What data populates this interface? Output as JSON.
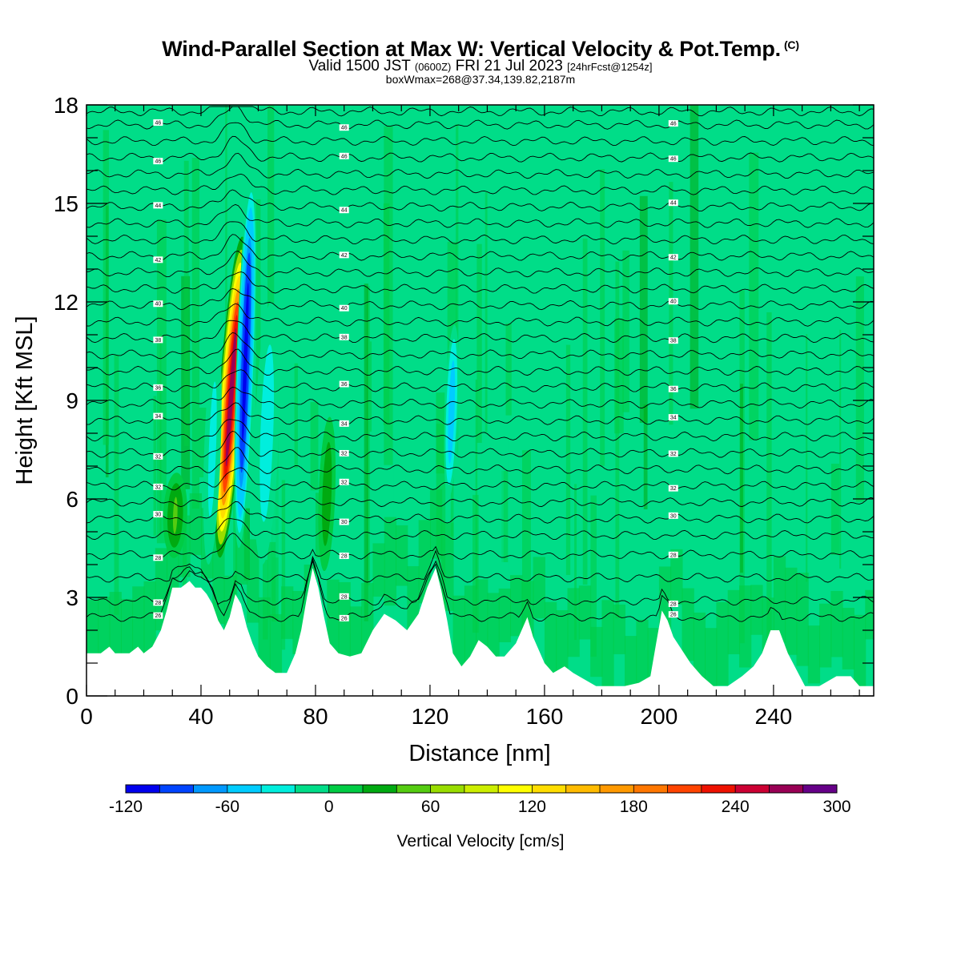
{
  "title": {
    "main": "Wind-Parallel Section at Max W: Vertical Velocity & Pot.Temp.",
    "main_suffix": "(C)",
    "valid_prefix": "Valid 1500 JST",
    "valid_z": "(0600Z)",
    "valid_date": "FRI 21 Jul 2023",
    "valid_fcst": "[24hrFcst@1254z]",
    "boxline": "boxWmax=268@37.34,139.82,2187m"
  },
  "chart_data": {
    "type": "heatmap",
    "xlabel": "Distance [nm]",
    "ylabel": "Height [Kft MSL]",
    "xlim": [
      0,
      275
    ],
    "ylim": [
      0,
      18
    ],
    "x_ticks": [
      0,
      40,
      80,
      120,
      160,
      200,
      240
    ],
    "y_ticks": [
      0,
      3,
      6,
      9,
      12,
      15,
      18
    ],
    "colorbar": {
      "title": "Vertical Velocity [cm/s]",
      "levels_min": -120,
      "level_step": 20,
      "labels": [
        -120,
        -60,
        0,
        60,
        120,
        180,
        240,
        300
      ],
      "colors": [
        "#0000ee",
        "#0044ff",
        "#0099ff",
        "#00ccff",
        "#00eedd",
        "#00dd88",
        "#00cc44",
        "#00aa11",
        "#55cc11",
        "#99dd00",
        "#ccee00",
        "#ffff00",
        "#ffdd00",
        "#ffbb00",
        "#ff9900",
        "#ff7700",
        "#ff4400",
        "#ee1100",
        "#cc0033",
        "#990055",
        "#660088"
      ]
    },
    "terrain_kft": [
      [
        0,
        1.3
      ],
      [
        5,
        1.3
      ],
      [
        8,
        1.5
      ],
      [
        10,
        1.3
      ],
      [
        15,
        1.3
      ],
      [
        18,
        1.5
      ],
      [
        20,
        1.3
      ],
      [
        23,
        1.5
      ],
      [
        26,
        2.0
      ],
      [
        28,
        2.6
      ],
      [
        30,
        3.3
      ],
      [
        33,
        3.3
      ],
      [
        36,
        3.5
      ],
      [
        38,
        3.3
      ],
      [
        40,
        3.3
      ],
      [
        42,
        3.1
      ],
      [
        44,
        2.8
      ],
      [
        46,
        2.3
      ],
      [
        48,
        2.0
      ],
      [
        50,
        2.4
      ],
      [
        52,
        3.1
      ],
      [
        54,
        2.8
      ],
      [
        56,
        2.1
      ],
      [
        58,
        1.6
      ],
      [
        60,
        1.2
      ],
      [
        63,
        0.9
      ],
      [
        66,
        0.7
      ],
      [
        70,
        0.7
      ],
      [
        73,
        1.3
      ],
      [
        75,
        2.0
      ],
      [
        77,
        3.0
      ],
      [
        79,
        3.9
      ],
      [
        81,
        3.3
      ],
      [
        83,
        2.4
      ],
      [
        85,
        1.6
      ],
      [
        88,
        1.3
      ],
      [
        92,
        1.2
      ],
      [
        96,
        1.3
      ],
      [
        100,
        2.0
      ],
      [
        104,
        2.5
      ],
      [
        108,
        2.3
      ],
      [
        112,
        2.0
      ],
      [
        116,
        2.5
      ],
      [
        119,
        3.3
      ],
      [
        122,
        3.9
      ],
      [
        124,
        3.2
      ],
      [
        126,
        2.3
      ],
      [
        128,
        1.3
      ],
      [
        131,
        0.9
      ],
      [
        134,
        1.2
      ],
      [
        137,
        1.7
      ],
      [
        140,
        1.5
      ],
      [
        143,
        1.2
      ],
      [
        146,
        1.2
      ],
      [
        150,
        1.6
      ],
      [
        154,
        2.4
      ],
      [
        156,
        1.8
      ],
      [
        160,
        1.0
      ],
      [
        163,
        0.7
      ],
      [
        167,
        0.9
      ],
      [
        170,
        0.7
      ],
      [
        174,
        0.5
      ],
      [
        178,
        0.3
      ],
      [
        183,
        0.3
      ],
      [
        188,
        0.3
      ],
      [
        193,
        0.4
      ],
      [
        197,
        0.6
      ],
      [
        199,
        1.6
      ],
      [
        201,
        2.6
      ],
      [
        203,
        2.3
      ],
      [
        205,
        1.8
      ],
      [
        208,
        1.4
      ],
      [
        211,
        1.0
      ],
      [
        215,
        0.6
      ],
      [
        219,
        0.3
      ],
      [
        224,
        0.3
      ],
      [
        229,
        0.6
      ],
      [
        233,
        0.9
      ],
      [
        236,
        1.3
      ],
      [
        239,
        2.0
      ],
      [
        242,
        2.0
      ],
      [
        245,
        1.3
      ],
      [
        248,
        0.8
      ],
      [
        251,
        0.3
      ],
      [
        256,
        0.3
      ],
      [
        262,
        0.6
      ],
      [
        267,
        0.6
      ],
      [
        270,
        0.3
      ],
      [
        275,
        0.3
      ]
    ],
    "isentropes": [
      {
        "kft": 2.4,
        "label": "26"
      },
      {
        "kft": 2.9,
        "label": "28"
      },
      {
        "kft": 3.6,
        "label": ""
      },
      {
        "kft": 4.3,
        "label": "28"
      },
      {
        "kft": 4.9,
        "label": ""
      },
      {
        "kft": 5.4,
        "label": "30"
      },
      {
        "kft": 5.9,
        "label": ""
      },
      {
        "kft": 6.4,
        "label": "32"
      },
      {
        "kft": 6.9,
        "label": ""
      },
      {
        "kft": 7.4,
        "label": "32"
      },
      {
        "kft": 7.9,
        "label": ""
      },
      {
        "kft": 8.4,
        "label": "34"
      },
      {
        "kft": 8.9,
        "label": ""
      },
      {
        "kft": 9.4,
        "label": "36"
      },
      {
        "kft": 9.9,
        "label": ""
      },
      {
        "kft": 10.4,
        "label": ""
      },
      {
        "kft": 10.9,
        "label": "38"
      },
      {
        "kft": 11.4,
        "label": ""
      },
      {
        "kft": 11.9,
        "label": "40"
      },
      {
        "kft": 12.4,
        "label": ""
      },
      {
        "kft": 12.9,
        "label": ""
      },
      {
        "kft": 13.4,
        "label": "42"
      },
      {
        "kft": 13.9,
        "label": ""
      },
      {
        "kft": 14.4,
        "label": ""
      },
      {
        "kft": 14.9,
        "label": "44"
      },
      {
        "kft": 15.4,
        "label": ""
      },
      {
        "kft": 15.9,
        "label": ""
      },
      {
        "kft": 16.4,
        "label": "46"
      },
      {
        "kft": 16.9,
        "label": ""
      },
      {
        "kft": 17.4,
        "label": "46"
      },
      {
        "kft": 17.8,
        "label": ""
      }
    ],
    "updrafts": [
      {
        "x": 50.5,
        "y0": 4.2,
        "y1": 14.0,
        "peak": 268,
        "width_nm": 3.0
      },
      {
        "x": 55.5,
        "y0": 4.5,
        "y1": 15.8,
        "peak": -110,
        "width_nm": 2.2
      },
      {
        "x": 127.5,
        "y0": 6.0,
        "y1": 11.3,
        "peak": -60,
        "width_nm": 1.6
      },
      {
        "x": 63,
        "y0": 4.0,
        "y1": 12.0,
        "peak": -40,
        "width_nm": 3.0
      },
      {
        "x": 31,
        "y0": 4.2,
        "y1": 6.8,
        "peak": 40,
        "width_nm": 3.0
      },
      {
        "x": 44,
        "y0": 4.0,
        "y1": 11.0,
        "peak": -30,
        "width_nm": 2.0
      },
      {
        "x": 84,
        "y0": 3.8,
        "y1": 8.5,
        "peak": 35,
        "width_nm": 2.0
      }
    ]
  }
}
